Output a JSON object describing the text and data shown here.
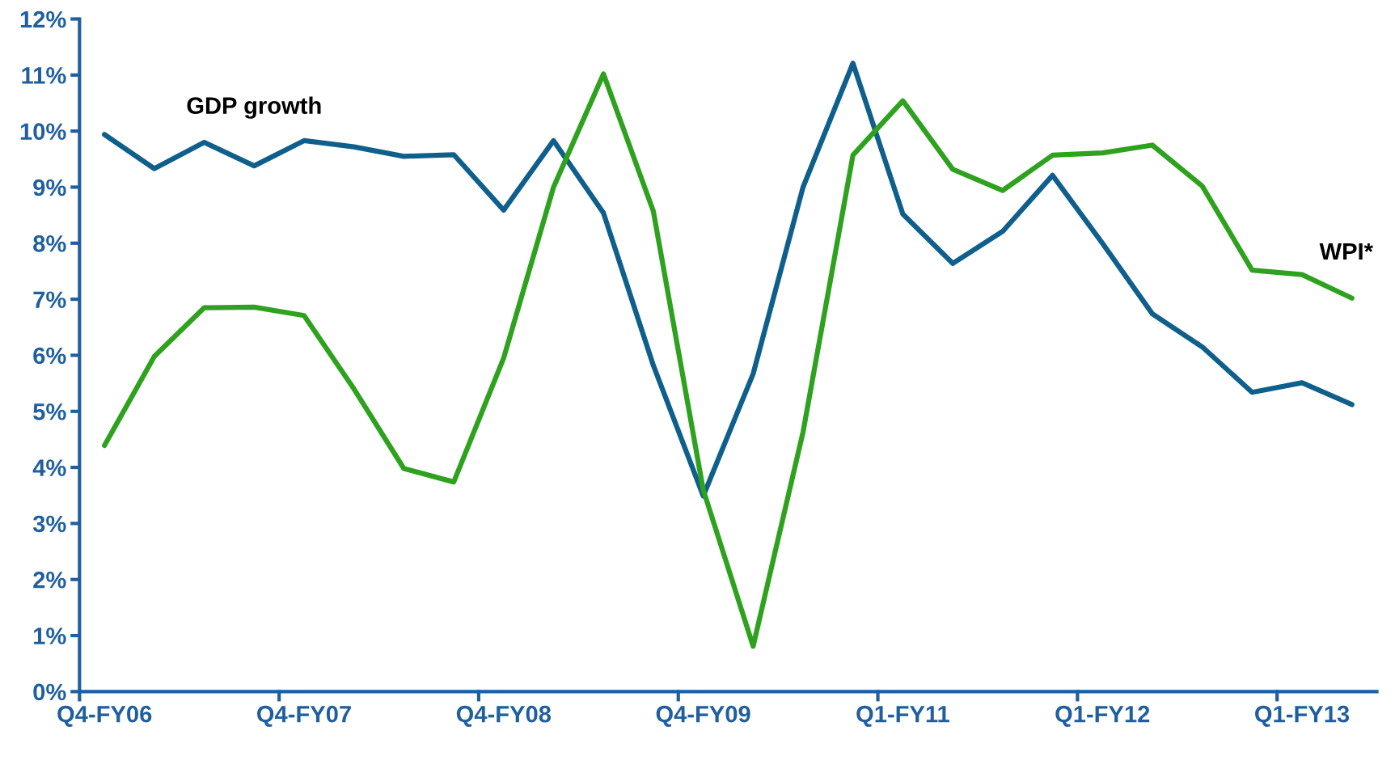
{
  "chart_data": {
    "type": "line",
    "categories": [
      "Q4-FY06",
      null,
      null,
      null,
      "Q4-FY07",
      null,
      null,
      null,
      "Q4-FY08",
      null,
      null,
      null,
      "Q4-FY09",
      null,
      null,
      null,
      "Q1-FY11",
      null,
      null,
      null,
      "Q1-FY12",
      null,
      null,
      null,
      "Q1-FY13",
      null
    ],
    "series": [
      {
        "name": "GDP growth",
        "color": "#0f5f8c",
        "values": [
          9.94,
          9.33,
          9.8,
          9.38,
          9.83,
          9.72,
          9.55,
          9.58,
          8.59,
          9.83,
          8.54,
          5.82,
          3.49,
          5.67,
          9.0,
          11.21,
          8.52,
          7.64,
          8.21,
          9.21,
          8.0,
          6.74,
          6.15,
          5.34,
          5.51,
          5.12
        ]
      },
      {
        "name": "WPI*",
        "color": "#2ea21e",
        "values": [
          4.39,
          5.98,
          6.85,
          6.86,
          6.71,
          5.4,
          3.98,
          3.74,
          5.95,
          9.0,
          11.02,
          8.57,
          3.6,
          0.81,
          4.63,
          9.57,
          10.54,
          9.32,
          8.94,
          9.57,
          9.61,
          9.75,
          9.02,
          7.52,
          7.44,
          7.02
        ]
      }
    ],
    "ylim": [
      0,
      12
    ],
    "yticks": [
      {
        "value": 0,
        "label": "0%"
      },
      {
        "value": 1,
        "label": "1%"
      },
      {
        "value": 2,
        "label": "2%"
      },
      {
        "value": 3,
        "label": "3%"
      },
      {
        "value": 4,
        "label": "4%"
      },
      {
        "value": 5,
        "label": "5%"
      },
      {
        "value": 6,
        "label": "6%"
      },
      {
        "value": 7,
        "label": "7%"
      },
      {
        "value": 8,
        "label": "8%"
      },
      {
        "value": 9,
        "label": "9%"
      },
      {
        "value": 10,
        "label": "10%"
      },
      {
        "value": 11,
        "label": "11%"
      },
      {
        "value": 12,
        "label": "12%"
      }
    ],
    "grid": false,
    "legend": false,
    "marker": "none",
    "line_style": "solid"
  }
}
